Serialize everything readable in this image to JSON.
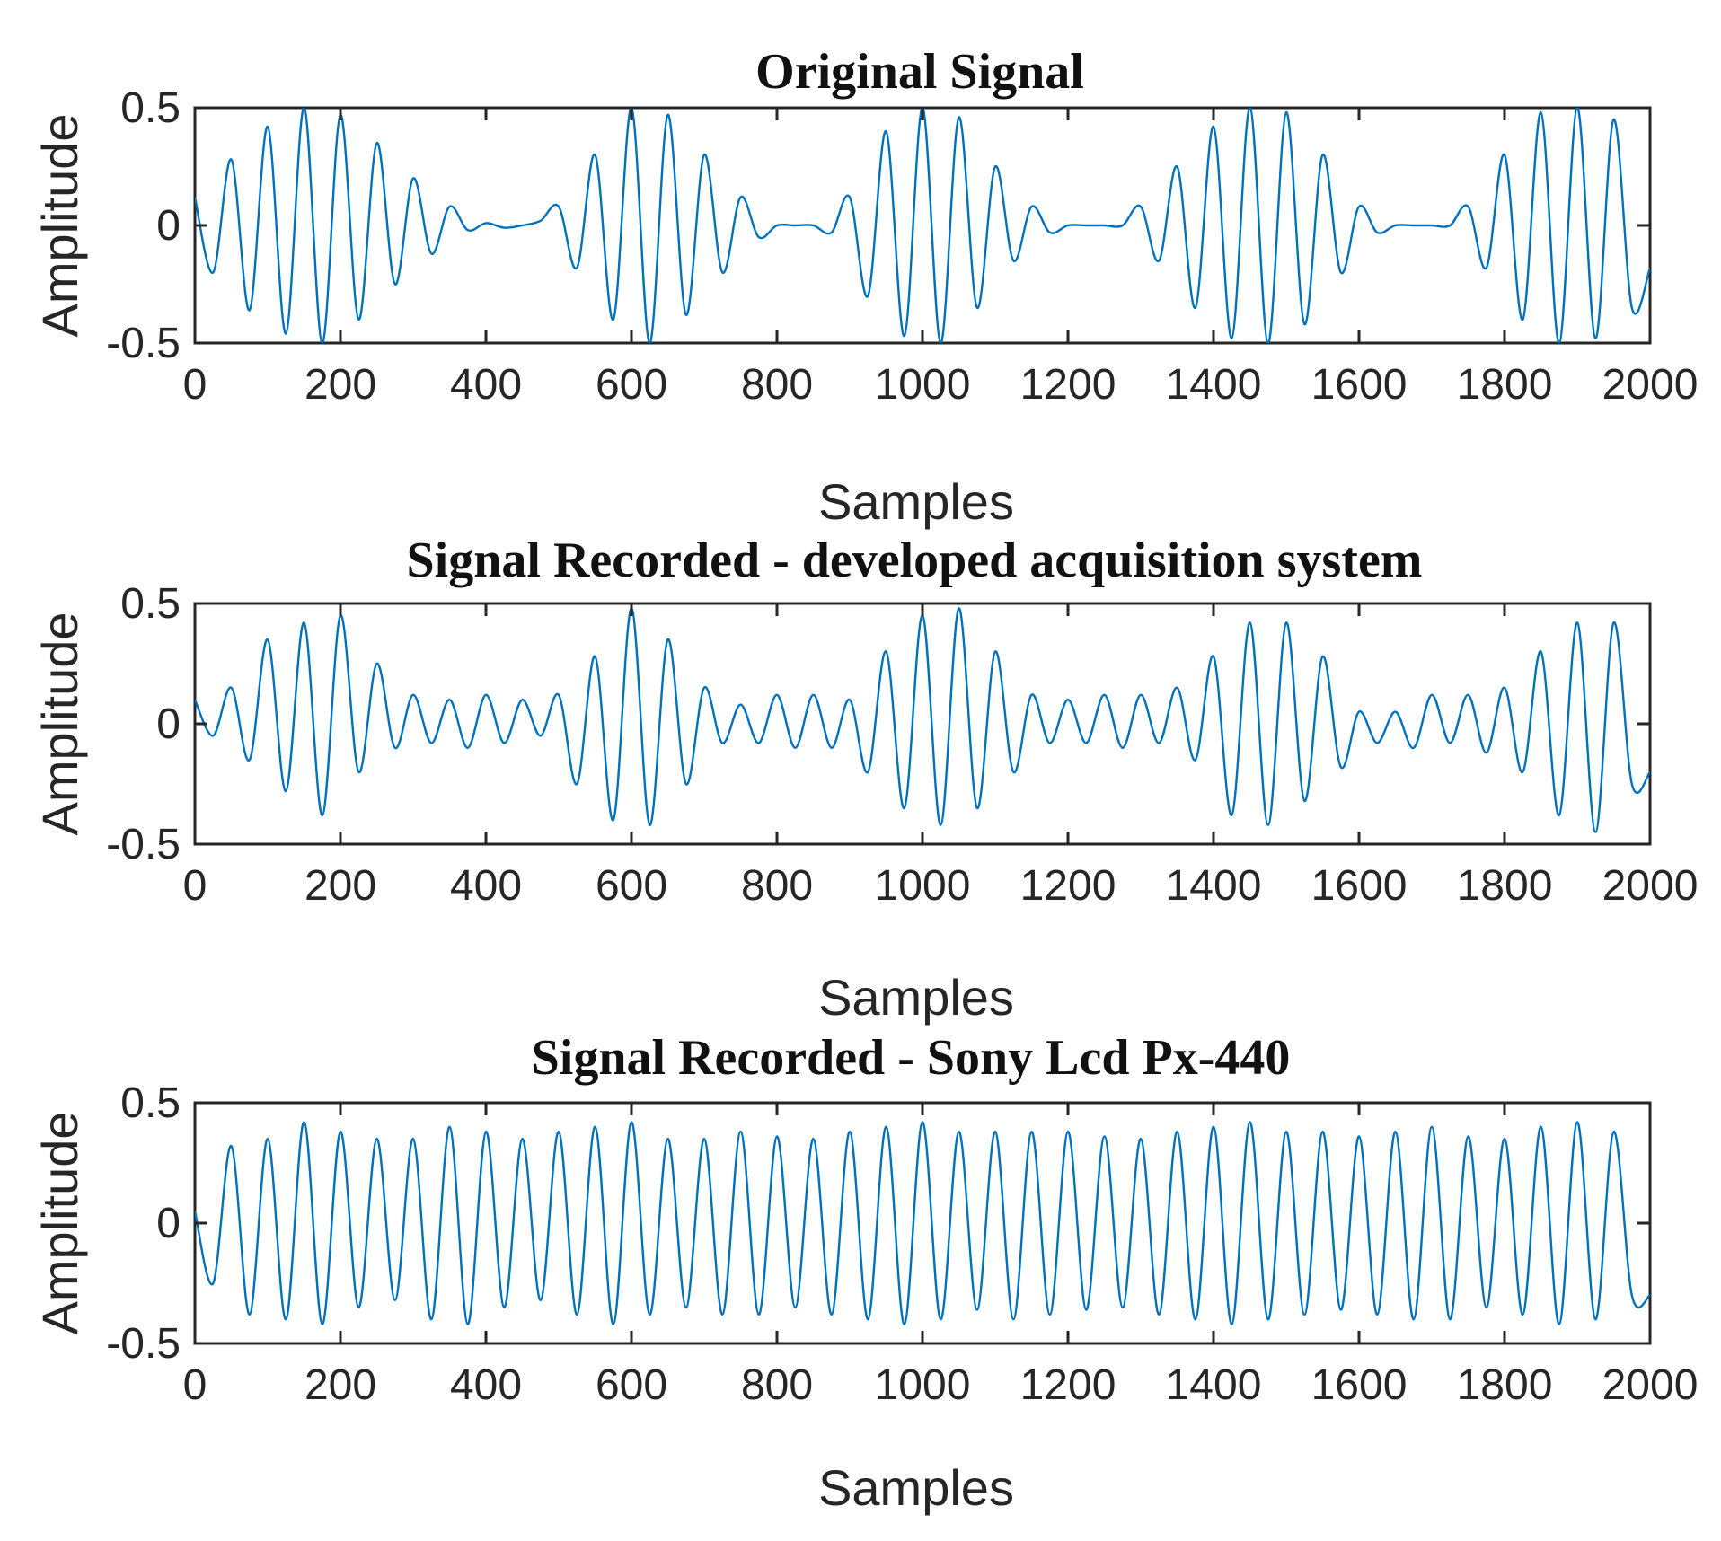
{
  "chart_data": [
    {
      "type": "line",
      "title": "Original Signal",
      "xlabel": "Samples",
      "ylabel": "Amplitude",
      "xlim": [
        0,
        2000
      ],
      "ylim": [
        -0.5,
        0.5
      ],
      "xticks": [
        0,
        200,
        400,
        600,
        800,
        1000,
        1200,
        1400,
        1600,
        1800,
        2000
      ],
      "xtick_labels": [
        "0",
        "200",
        "400",
        "600",
        "800",
        "1000",
        "1200",
        "1400",
        "1600",
        "1800",
        "2000"
      ],
      "yticks": [
        -0.5,
        0,
        0.5
      ],
      "ytick_labels": [
        "-0.5",
        "0",
        "0.5"
      ],
      "series": [
        {
          "name": "Original Signal",
          "color": "#0072BD",
          "x": [
            0,
            25,
            50,
            75,
            100,
            125,
            150,
            175,
            200,
            225,
            250,
            275,
            300,
            325,
            350,
            375,
            400,
            425,
            450,
            475,
            500,
            525,
            550,
            575,
            600,
            625,
            650,
            675,
            700,
            725,
            750,
            775,
            800,
            825,
            850,
            875,
            900,
            925,
            950,
            975,
            1000,
            1025,
            1050,
            1075,
            1100,
            1125,
            1150,
            1175,
            1200,
            1225,
            1250,
            1275,
            1300,
            1325,
            1350,
            1375,
            1400,
            1425,
            1450,
            1475,
            1500,
            1525,
            1550,
            1575,
            1600,
            1625,
            1650,
            1675,
            1700,
            1725,
            1750,
            1775,
            1800,
            1825,
            1850,
            1875,
            1900,
            1925,
            1950,
            1975,
            2000
          ],
          "y": [
            0.12,
            -0.2,
            0.28,
            -0.36,
            0.42,
            -0.46,
            0.5,
            -0.5,
            0.47,
            -0.4,
            0.35,
            -0.25,
            0.2,
            -0.12,
            0.08,
            -0.02,
            0.01,
            -0.01,
            0.0,
            0.02,
            0.08,
            -0.18,
            0.3,
            -0.4,
            0.5,
            -0.5,
            0.47,
            -0.38,
            0.3,
            -0.2,
            0.12,
            -0.05,
            0.0,
            0.0,
            0.0,
            -0.03,
            0.12,
            -0.3,
            0.4,
            -0.47,
            0.5,
            -0.5,
            0.46,
            -0.35,
            0.25,
            -0.15,
            0.08,
            -0.03,
            0.0,
            0.0,
            0.0,
            0.0,
            0.08,
            -0.15,
            0.25,
            -0.35,
            0.42,
            -0.48,
            0.5,
            -0.5,
            0.48,
            -0.42,
            0.3,
            -0.2,
            0.08,
            -0.03,
            0.0,
            0.0,
            0.0,
            0.0,
            0.08,
            -0.18,
            0.3,
            -0.4,
            0.48,
            -0.5,
            0.5,
            -0.48,
            0.45,
            -0.35,
            -0.18
          ]
        }
      ]
    },
    {
      "type": "line",
      "title": "Signal Recorded - developed acquisition system",
      "xlabel": "Samples",
      "ylabel": "Amplitude",
      "xlim": [
        0,
        2000
      ],
      "ylim": [
        -0.5,
        0.5
      ],
      "xticks": [
        0,
        200,
        400,
        600,
        800,
        1000,
        1200,
        1400,
        1600,
        1800,
        2000
      ],
      "xtick_labels": [
        "0",
        "200",
        "400",
        "600",
        "800",
        "1000",
        "1200",
        "1400",
        "1600",
        "1800",
        "2000"
      ],
      "yticks": [
        -0.5,
        0,
        0.5
      ],
      "ytick_labels": [
        "-0.5",
        "0",
        "0.5"
      ],
      "series": [
        {
          "name": "Signal Recorded - developed acquisition system",
          "color": "#0072BD",
          "x": [
            0,
            25,
            50,
            75,
            100,
            125,
            150,
            175,
            200,
            225,
            250,
            275,
            300,
            325,
            350,
            375,
            400,
            425,
            450,
            475,
            500,
            525,
            550,
            575,
            600,
            625,
            650,
            675,
            700,
            725,
            750,
            775,
            800,
            825,
            850,
            875,
            900,
            925,
            950,
            975,
            1000,
            1025,
            1050,
            1075,
            1100,
            1125,
            1150,
            1175,
            1200,
            1225,
            1250,
            1275,
            1300,
            1325,
            1350,
            1375,
            1400,
            1425,
            1450,
            1475,
            1500,
            1525,
            1550,
            1575,
            1600,
            1625,
            1650,
            1675,
            1700,
            1725,
            1750,
            1775,
            1800,
            1825,
            1850,
            1875,
            1900,
            1925,
            1950,
            1975,
            2000
          ],
          "y": [
            0.1,
            -0.05,
            0.15,
            -0.15,
            0.35,
            -0.28,
            0.42,
            -0.38,
            0.45,
            -0.2,
            0.25,
            -0.1,
            0.12,
            -0.08,
            0.1,
            -0.1,
            0.12,
            -0.08,
            0.1,
            -0.05,
            0.12,
            -0.25,
            0.28,
            -0.4,
            0.48,
            -0.42,
            0.35,
            -0.25,
            0.15,
            -0.08,
            0.08,
            -0.08,
            0.12,
            -0.1,
            0.12,
            -0.1,
            0.1,
            -0.2,
            0.3,
            -0.35,
            0.45,
            -0.42,
            0.48,
            -0.35,
            0.3,
            -0.2,
            0.12,
            -0.08,
            0.1,
            -0.08,
            0.12,
            -0.1,
            0.12,
            -0.08,
            0.15,
            -0.15,
            0.28,
            -0.38,
            0.42,
            -0.42,
            0.42,
            -0.32,
            0.28,
            -0.18,
            0.05,
            -0.08,
            0.05,
            -0.1,
            0.12,
            -0.08,
            0.12,
            -0.12,
            0.15,
            -0.2,
            0.3,
            -0.38,
            0.42,
            -0.45,
            0.42,
            -0.25,
            -0.2
          ]
        }
      ]
    },
    {
      "type": "line",
      "title": "Signal Recorded - Sony Lcd Px-440",
      "xlabel": "Samples",
      "ylabel": "Amplitude",
      "xlim": [
        0,
        2000
      ],
      "ylim": [
        -0.5,
        0.5
      ],
      "xticks": [
        0,
        200,
        400,
        600,
        800,
        1000,
        1200,
        1400,
        1600,
        1800,
        2000
      ],
      "xtick_labels": [
        "0",
        "200",
        "400",
        "600",
        "800",
        "1000",
        "1200",
        "1400",
        "1600",
        "1800",
        "2000"
      ],
      "yticks": [
        -0.5,
        0,
        0.5
      ],
      "ytick_labels": [
        "-0.5",
        "0",
        "0.5"
      ],
      "series": [
        {
          "name": "Signal Recorded - Sony Lcd Px-440",
          "color": "#0072BD",
          "x": [
            0,
            25,
            50,
            75,
            100,
            125,
            150,
            175,
            200,
            225,
            250,
            275,
            300,
            325,
            350,
            375,
            400,
            425,
            450,
            475,
            500,
            525,
            550,
            575,
            600,
            625,
            650,
            675,
            700,
            725,
            750,
            775,
            800,
            825,
            850,
            875,
            900,
            925,
            950,
            975,
            1000,
            1025,
            1050,
            1075,
            1100,
            1125,
            1150,
            1175,
            1200,
            1225,
            1250,
            1275,
            1300,
            1325,
            1350,
            1375,
            1400,
            1425,
            1450,
            1475,
            1500,
            1525,
            1550,
            1575,
            1600,
            1625,
            1650,
            1675,
            1700,
            1725,
            1750,
            1775,
            1800,
            1825,
            1850,
            1875,
            1900,
            1925,
            1950,
            1975,
            2000
          ],
          "y": [
            0.05,
            -0.25,
            0.32,
            -0.38,
            0.35,
            -0.4,
            0.42,
            -0.42,
            0.38,
            -0.35,
            0.35,
            -0.32,
            0.35,
            -0.4,
            0.4,
            -0.42,
            0.38,
            -0.35,
            0.35,
            -0.32,
            0.38,
            -0.38,
            0.4,
            -0.42,
            0.42,
            -0.38,
            0.35,
            -0.35,
            0.35,
            -0.38,
            0.38,
            -0.38,
            0.36,
            -0.35,
            0.35,
            -0.38,
            0.38,
            -0.4,
            0.4,
            -0.42,
            0.42,
            -0.4,
            0.38,
            -0.36,
            0.38,
            -0.4,
            0.38,
            -0.38,
            0.38,
            -0.36,
            0.36,
            -0.35,
            0.35,
            -0.38,
            0.38,
            -0.4,
            0.4,
            -0.42,
            0.42,
            -0.4,
            0.38,
            -0.38,
            0.38,
            -0.36,
            0.36,
            -0.38,
            0.38,
            -0.4,
            0.4,
            -0.4,
            0.36,
            -0.35,
            0.35,
            -0.38,
            0.4,
            -0.42,
            0.42,
            -0.4,
            0.38,
            -0.3,
            -0.3
          ]
        }
      ]
    }
  ]
}
